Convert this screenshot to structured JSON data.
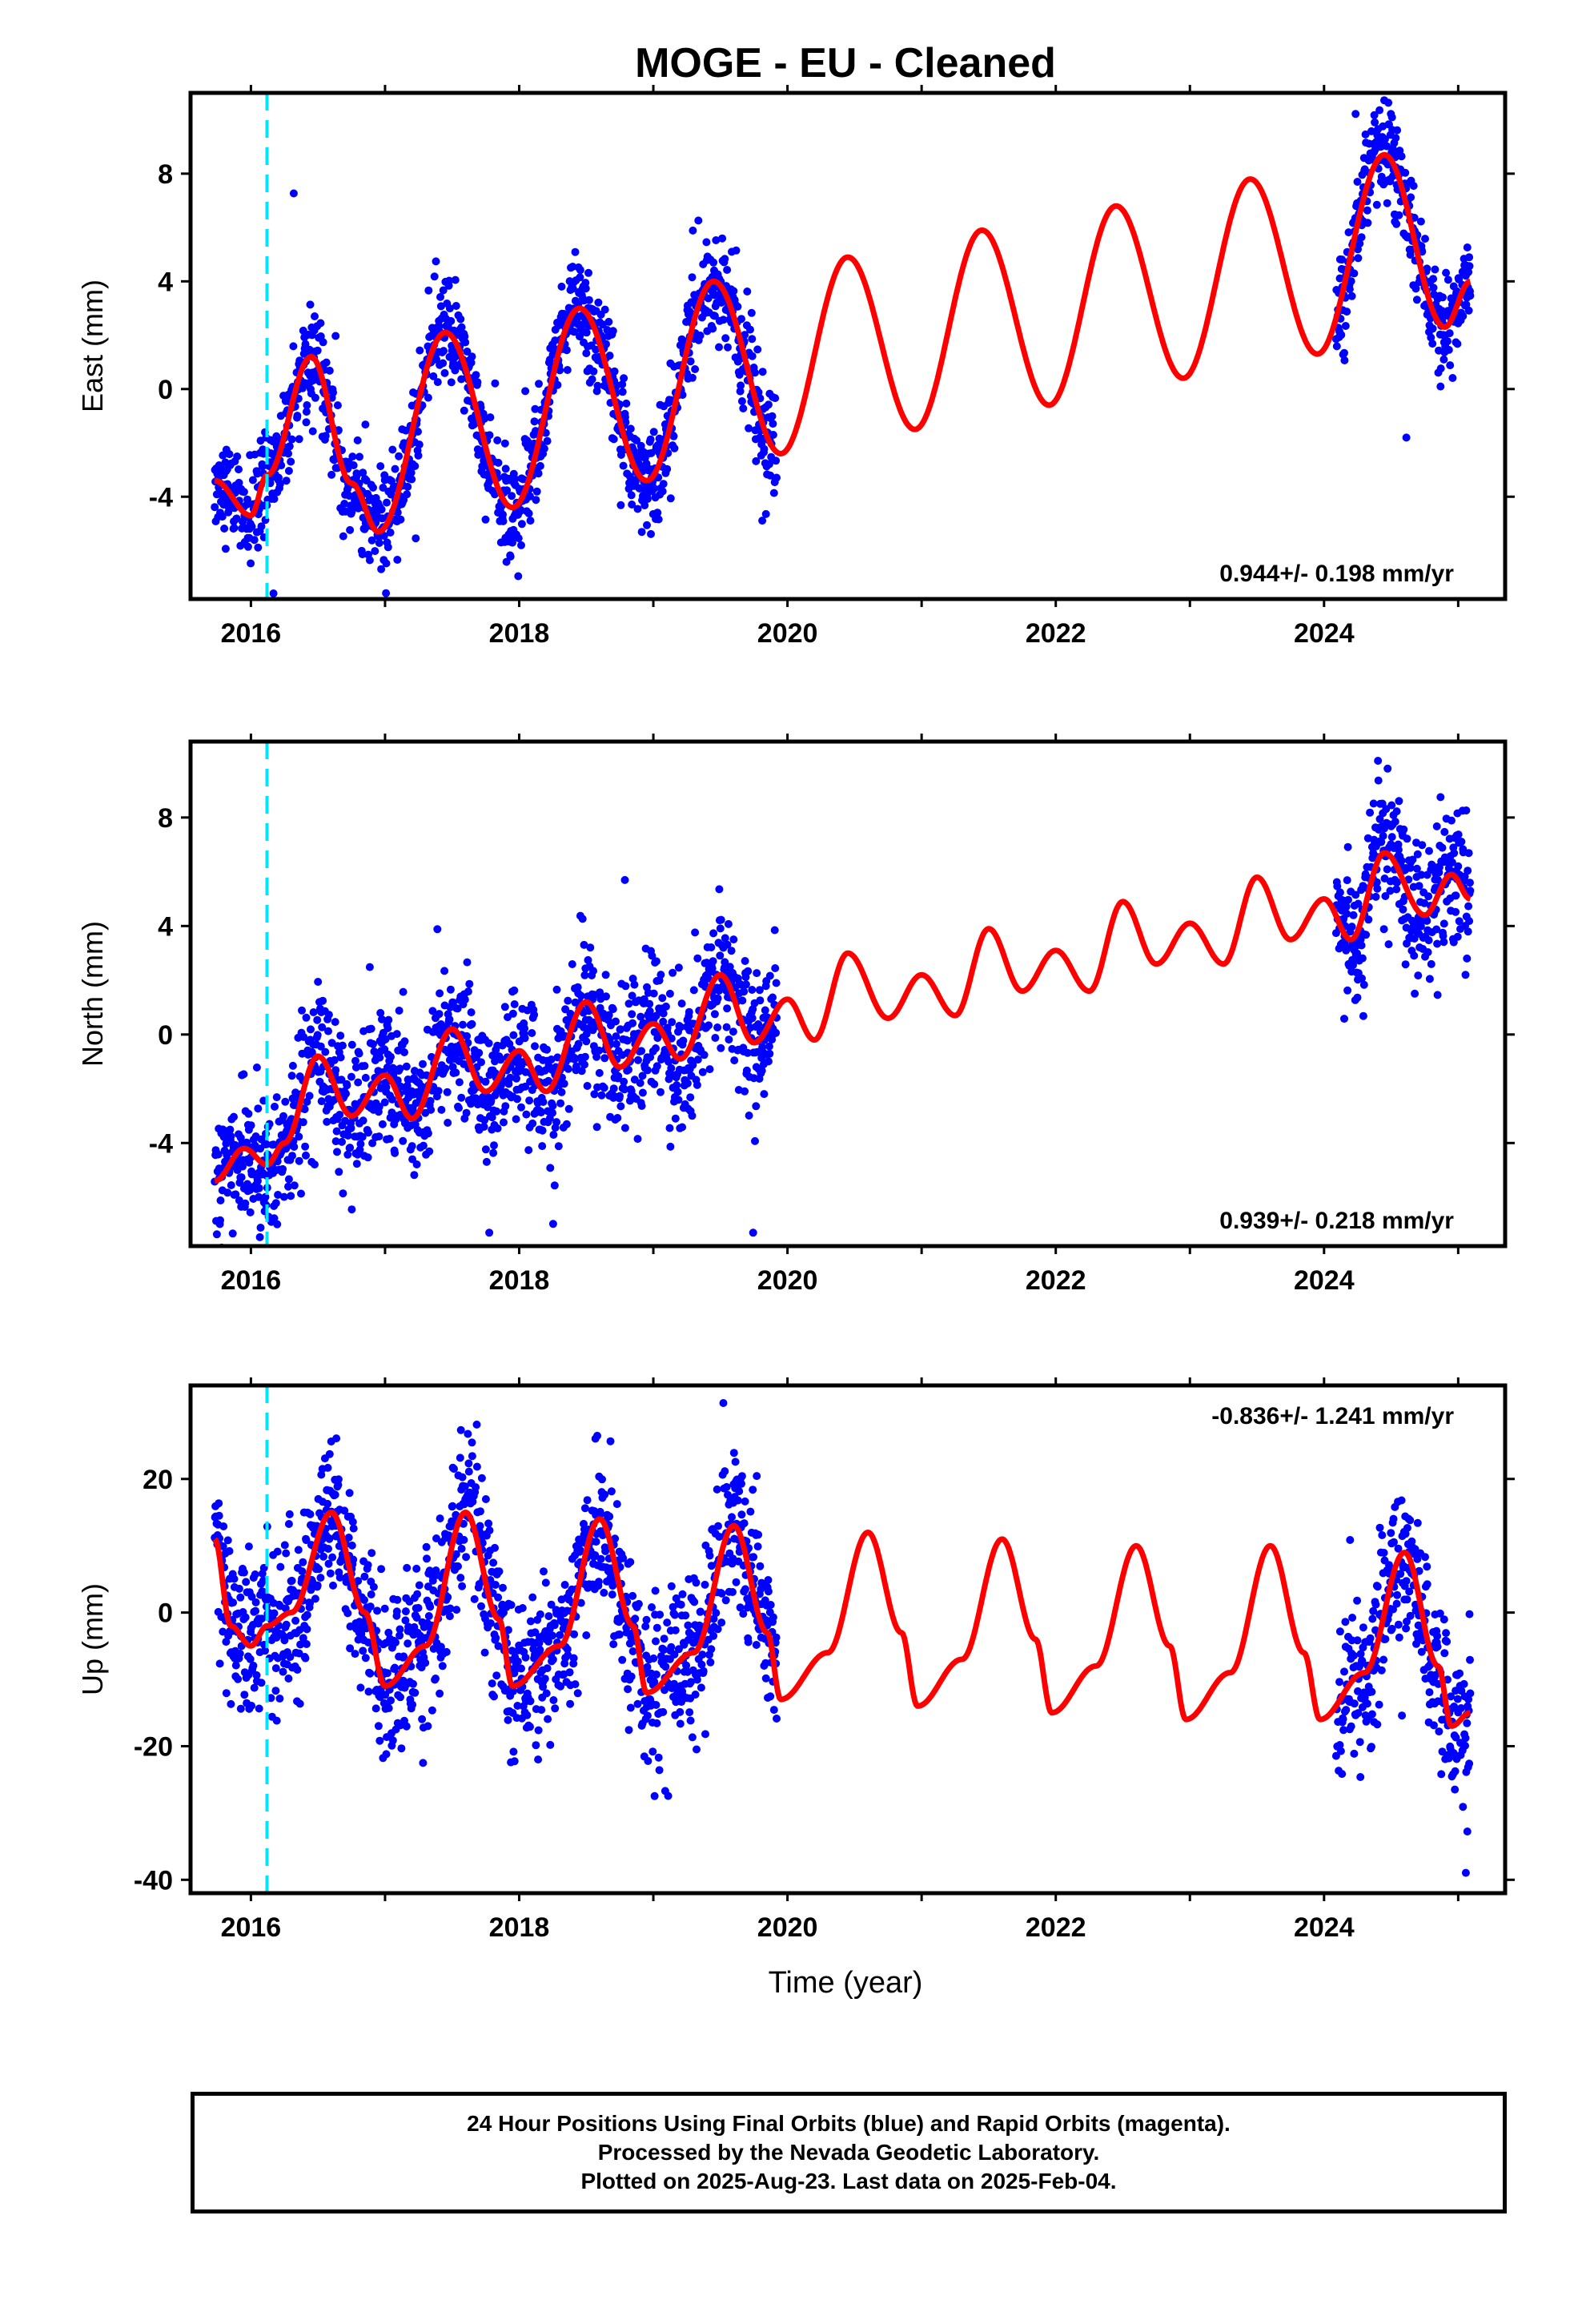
{
  "chart_data": {
    "type": "scatter",
    "title": "MOGE  - EU - Cleaned",
    "xlabel": "Time (year)",
    "x_ticks": [
      "2016",
      "2018",
      "2020",
      "2022",
      "2024"
    ],
    "xlim": [
      2015.55,
      2025.35
    ],
    "marker_line_x": 2016.12,
    "colors": {
      "points": "#0000ff",
      "model": "#ff0000",
      "marker": "#00e5ff"
    },
    "data_spans": [
      [
        2015.73,
        2019.92
      ],
      [
        2024.09,
        2025.09
      ]
    ],
    "panels": [
      {
        "ylabel": "East (mm)",
        "ylim": [
          -7.8,
          11.0
        ],
        "y_ticks": [
          -4,
          0,
          4,
          8
        ],
        "rate_label": "0.944+/- 0.198 mm/yr",
        "rate_label_position": "bottom-right",
        "model_points": [
          [
            2015.73,
            -3.4
          ],
          [
            2016.0,
            -4.7
          ],
          [
            2016.12,
            -3.2
          ],
          [
            2016.45,
            1.2
          ],
          [
            2016.75,
            -3.5
          ],
          [
            2016.95,
            -5.3
          ],
          [
            2017.45,
            2.1
          ],
          [
            2017.95,
            -4.4
          ],
          [
            2018.45,
            3.0
          ],
          [
            2018.95,
            -3.4
          ],
          [
            2019.45,
            4.0
          ],
          [
            2019.95,
            -2.4
          ],
          [
            2020.45,
            4.9
          ],
          [
            2020.95,
            -1.5
          ],
          [
            2021.45,
            5.9
          ],
          [
            2021.95,
            -0.6
          ],
          [
            2022.45,
            6.8
          ],
          [
            2022.95,
            0.4
          ],
          [
            2023.45,
            7.8
          ],
          [
            2023.95,
            1.3
          ],
          [
            2024.45,
            8.7
          ],
          [
            2024.9,
            2.3
          ],
          [
            2025.09,
            4.0
          ]
        ],
        "scatter_sd": 0.95
      },
      {
        "ylabel": "North (mm)",
        "ylim": [
          -7.8,
          10.8
        ],
        "y_ticks": [
          -4,
          0,
          4,
          8
        ],
        "rate_label": "0.939+/- 0.218 mm/yr",
        "rate_label_position": "bottom-right",
        "model_points": [
          [
            2015.73,
            -5.4
          ],
          [
            2015.95,
            -4.2
          ],
          [
            2016.12,
            -4.8
          ],
          [
            2016.25,
            -4.0
          ],
          [
            2016.5,
            -0.8
          ],
          [
            2016.75,
            -3.0
          ],
          [
            2017.0,
            -1.5
          ],
          [
            2017.2,
            -3.1
          ],
          [
            2017.5,
            0.2
          ],
          [
            2017.75,
            -2.1
          ],
          [
            2018.0,
            -0.6
          ],
          [
            2018.2,
            -2.1
          ],
          [
            2018.5,
            1.2
          ],
          [
            2018.75,
            -1.2
          ],
          [
            2019.0,
            0.4
          ],
          [
            2019.2,
            -0.9
          ],
          [
            2019.5,
            2.2
          ],
          [
            2019.75,
            -0.3
          ],
          [
            2020.0,
            1.3
          ],
          [
            2020.2,
            -0.2
          ],
          [
            2020.45,
            3.0
          ],
          [
            2020.75,
            0.6
          ],
          [
            2021.0,
            2.2
          ],
          [
            2021.25,
            0.7
          ],
          [
            2021.5,
            3.9
          ],
          [
            2021.75,
            1.6
          ],
          [
            2022.0,
            3.1
          ],
          [
            2022.25,
            1.6
          ],
          [
            2022.5,
            4.9
          ],
          [
            2022.75,
            2.6
          ],
          [
            2023.0,
            4.1
          ],
          [
            2023.25,
            2.6
          ],
          [
            2023.5,
            5.8
          ],
          [
            2023.75,
            3.5
          ],
          [
            2024.0,
            5.0
          ],
          [
            2024.2,
            3.5
          ],
          [
            2024.45,
            6.7
          ],
          [
            2024.75,
            4.4
          ],
          [
            2024.95,
            5.9
          ],
          [
            2025.09,
            5.0
          ]
        ],
        "scatter_sd": 1.3
      },
      {
        "ylabel": "Up (mm)",
        "ylim": [
          -42.0,
          34.0
        ],
        "y_ticks": [
          -40,
          -20,
          0,
          20
        ],
        "rate_label": "-0.836+/- 1.241 mm/yr",
        "rate_label_position": "top-right",
        "model_points": [
          [
            2015.73,
            11
          ],
          [
            2015.85,
            -2
          ],
          [
            2016.0,
            -5
          ],
          [
            2016.12,
            -2
          ],
          [
            2016.3,
            0
          ],
          [
            2016.6,
            15
          ],
          [
            2016.85,
            0
          ],
          [
            2017.0,
            -11
          ],
          [
            2017.3,
            -5
          ],
          [
            2017.6,
            15
          ],
          [
            2017.85,
            -1
          ],
          [
            2017.95,
            -11
          ],
          [
            2018.3,
            -5
          ],
          [
            2018.6,
            14
          ],
          [
            2018.85,
            -2
          ],
          [
            2018.95,
            -12
          ],
          [
            2019.3,
            -6
          ],
          [
            2019.6,
            13
          ],
          [
            2019.85,
            -3
          ],
          [
            2019.95,
            -13
          ],
          [
            2020.3,
            -6
          ],
          [
            2020.6,
            12
          ],
          [
            2020.85,
            -3
          ],
          [
            2020.97,
            -14
          ],
          [
            2021.3,
            -7
          ],
          [
            2021.6,
            11
          ],
          [
            2021.85,
            -4
          ],
          [
            2021.97,
            -15
          ],
          [
            2022.3,
            -8
          ],
          [
            2022.6,
            10
          ],
          [
            2022.85,
            -5
          ],
          [
            2022.97,
            -16
          ],
          [
            2023.3,
            -9
          ],
          [
            2023.6,
            10
          ],
          [
            2023.85,
            -6
          ],
          [
            2023.97,
            -16
          ],
          [
            2024.3,
            -9
          ],
          [
            2024.6,
            9
          ],
          [
            2024.85,
            -8
          ],
          [
            2024.95,
            -17
          ],
          [
            2025.09,
            -15
          ]
        ],
        "scatter_sd": 6.0
      }
    ]
  },
  "footer": {
    "line1": "24 Hour Positions Using Final Orbits (blue) and Rapid Orbits (magenta).",
    "line2": "Processed by the Nevada Geodetic Laboratory.",
    "line3": "Plotted on 2025-Aug-23. Last data on 2025-Feb-04."
  }
}
